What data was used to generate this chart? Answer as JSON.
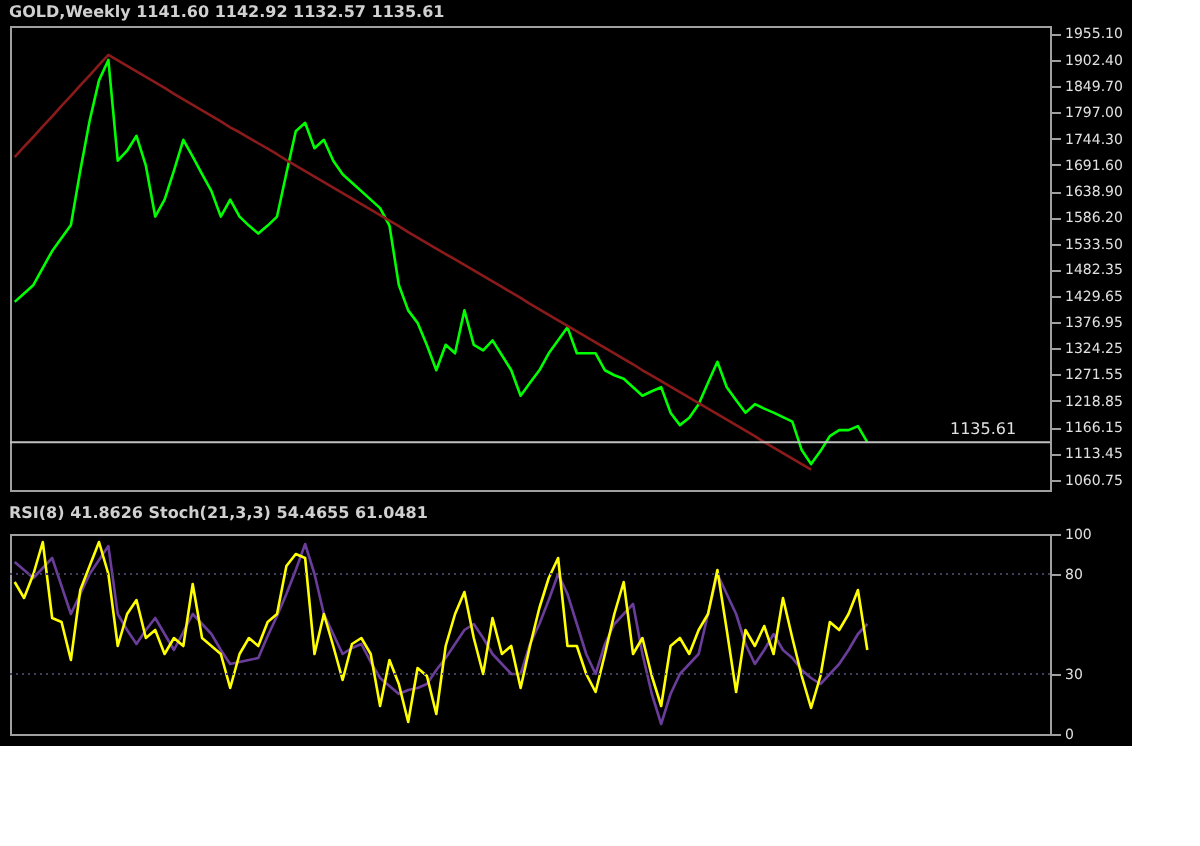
{
  "chart_data": [
    {
      "type": "line",
      "title": "GOLD,Weekly  1141.60 1142.92 1132.57 1135.61",
      "ylim": [
        1040,
        1970
      ],
      "tick_labels": "y",
      "grid": false,
      "legend": false,
      "categories": [
        null,
        null,
        null,
        null,
        null,
        null,
        null,
        null,
        null,
        null,
        null,
        null,
        null,
        null,
        null,
        null,
        null,
        null,
        null,
        null,
        null,
        null,
        null,
        null,
        null,
        null,
        null,
        null,
        null,
        null,
        null,
        null,
        null,
        null,
        null,
        null,
        null,
        null,
        null,
        null,
        null,
        null,
        null,
        null,
        null,
        null,
        null,
        null,
        null,
        null,
        null,
        null,
        null,
        null,
        null,
        null,
        null,
        null,
        null,
        null,
        null,
        null,
        null,
        null,
        null,
        null,
        null,
        null,
        null,
        null,
        null,
        null,
        null,
        null,
        null,
        null,
        null,
        null,
        null,
        null,
        null,
        null,
        null,
        null,
        null,
        null,
        null,
        null,
        null,
        null,
        null,
        null,
        null,
        null,
        null,
        null,
        null,
        null,
        null,
        null,
        null,
        null,
        null,
        null,
        null,
        null,
        null,
        null,
        null,
        null,
        null
      ],
      "yticks": [
        {
          "value": 1060.75,
          "label": "1060.75"
        },
        {
          "value": 1113.45,
          "label": "1113.45"
        },
        {
          "value": 1166.15,
          "label": "1166.15"
        },
        {
          "value": 1218.85,
          "label": "1218.85"
        },
        {
          "value": 1271.55,
          "label": "1271.55"
        },
        {
          "value": 1324.25,
          "label": "1324.25"
        },
        {
          "value": 1376.95,
          "label": "1376.95"
        },
        {
          "value": 1429.65,
          "label": "1429.65"
        },
        {
          "value": 1482.35,
          "label": "1482.35"
        },
        {
          "value": 1533.5,
          "label": "1533.50"
        },
        {
          "value": 1586.2,
          "label": "1586.20"
        },
        {
          "value": 1638.9,
          "label": "1638.90"
        },
        {
          "value": 1691.6,
          "label": "1691.60"
        },
        {
          "value": 1744.3,
          "label": "1744.30"
        },
        {
          "value": 1797.0,
          "label": "1797.00"
        },
        {
          "value": 1849.7,
          "label": "1849.70"
        },
        {
          "value": 1902.4,
          "label": "1902.40"
        },
        {
          "value": 1955.1,
          "label": "1955.10"
        }
      ],
      "ref_lines": [
        {
          "axis": "y",
          "value": 1135.61,
          "label": "1135.61",
          "color": "#c0c0c0",
          "line_style": "solid"
        }
      ],
      "series": [
        {
          "color": "#00ff00",
          "values": [
            1417,
            1434,
            1451,
            1485,
            1519,
            1545,
            1571,
            1680,
            1780,
            1861,
            1902,
            1700,
            1720,
            1750,
            1690,
            1588,
            1622,
            1680,
            1742,
            1708,
            1673,
            1639,
            1588,
            1622,
            1588,
            1570,
            1554,
            1570,
            1588,
            1675,
            1759,
            1776,
            1725,
            1742,
            1700,
            1673,
            1656,
            1639,
            1622,
            1605,
            1570,
            1451,
            1400,
            1375,
            1330,
            1280,
            1331,
            1314,
            1400,
            1331,
            1320,
            1340,
            1310,
            1280,
            1229,
            1255,
            1280,
            1314,
            1340,
            1366,
            1314,
            1314,
            1314,
            1280,
            1270,
            1263,
            1246,
            1229,
            1238,
            1246,
            1195,
            1170,
            1185,
            1212,
            1255,
            1297,
            1246,
            1220,
            1195,
            1212,
            1203,
            1195,
            1186,
            1177,
            1120,
            1092,
            1118,
            1148,
            1160,
            1160,
            1168,
            1136,
            null,
            null,
            null,
            null,
            null,
            null,
            null,
            null,
            null,
            null,
            null,
            null,
            null,
            null,
            null,
            null,
            null,
            null,
            null
          ]
        },
        {
          "color": "#8b1a1a",
          "values": [
            1707,
            1728,
            1748,
            1769,
            1789,
            1810,
            1830,
            1851,
            1871,
            1892,
            1912,
            1901,
            1890,
            1879,
            1868,
            1857,
            1846,
            1834,
            1823,
            1812,
            1801,
            1790,
            1779,
            1767,
            1757,
            1746,
            1735,
            1724,
            1713,
            1701,
            1690,
            1679,
            1668,
            1657,
            1646,
            1635,
            1624,
            1613,
            1602,
            1591,
            1580,
            1569,
            1557,
            1546,
            1535,
            1524,
            1513,
            1502,
            1491,
            1480,
            1469,
            1458,
            1447,
            1436,
            1425,
            1413,
            1402,
            1391,
            1380,
            1369,
            1358,
            1347,
            1336,
            1325,
            1314,
            1303,
            1292,
            1280,
            1269,
            1258,
            1247,
            1236,
            1225,
            1214,
            1203,
            1192,
            1181,
            1170,
            1159,
            1148,
            1136,
            1125,
            1114,
            1103,
            1092,
            1081,
            null,
            null,
            null,
            null,
            null,
            null,
            null,
            null,
            null,
            null,
            null,
            null,
            null,
            null,
            null,
            null,
            null,
            null,
            null,
            null,
            null,
            null,
            null,
            null,
            null
          ]
        }
      ]
    },
    {
      "type": "line",
      "title": "RSI(8) 41.8626  Stoch(21,3,3) 54.4655 61.0481",
      "ylim": [
        0,
        100
      ],
      "yticks": [
        0,
        30,
        80,
        100
      ],
      "tick_labels": "y",
      "grid": false,
      "legend": false,
      "categories": [
        null,
        null,
        null,
        null,
        null,
        null,
        null,
        null,
        null,
        null,
        null,
        null,
        null,
        null,
        null,
        null,
        null,
        null,
        null,
        null,
        null,
        null,
        null,
        null,
        null,
        null,
        null,
        null,
        null,
        null,
        null,
        null,
        null,
        null,
        null,
        null,
        null,
        null,
        null,
        null,
        null,
        null,
        null,
        null,
        null,
        null,
        null,
        null,
        null,
        null,
        null,
        null,
        null,
        null,
        null,
        null,
        null,
        null,
        null,
        null,
        null,
        null,
        null,
        null,
        null,
        null,
        null,
        null,
        null,
        null,
        null,
        null,
        null,
        null,
        null,
        null,
        null,
        null,
        null,
        null,
        null,
        null,
        null,
        null,
        null,
        null,
        null,
        null,
        null,
        null,
        null,
        null,
        null,
        null,
        null,
        null,
        null,
        null,
        null,
        null,
        null,
        null,
        null,
        null,
        null,
        null,
        null,
        null,
        null,
        null,
        null
      ],
      "ref_lines": [
        {
          "axis": "y",
          "value": 80,
          "color": "#404060",
          "line_style": "dotted"
        },
        {
          "axis": "y",
          "value": 30,
          "color": "#404060",
          "line_style": "dotted"
        }
      ],
      "series": [
        {
          "color": "#6a3d9a",
          "values": [
            86,
            82,
            78,
            83,
            88,
            74,
            60,
            70,
            80,
            87,
            94,
            60,
            52,
            45,
            52,
            58,
            50,
            42,
            51,
            60,
            55,
            50,
            42,
            35,
            36,
            37,
            38,
            49,
            59,
            70,
            82,
            95,
            80,
            60,
            50,
            40,
            43,
            45,
            36,
            28,
            24,
            20,
            22,
            23,
            25,
            32,
            38,
            45,
            52,
            55,
            48,
            40,
            35,
            30,
            30,
            45,
            55,
            67,
            80,
            70,
            55,
            40,
            30,
            45,
            55,
            60,
            65,
            40,
            20,
            5,
            20,
            30,
            35,
            40,
            60,
            80,
            70,
            60,
            45,
            35,
            42,
            50,
            42,
            38,
            32,
            28,
            25,
            30,
            35,
            42,
            50,
            55,
            null,
            null,
            null,
            null,
            null,
            null,
            null,
            null,
            null,
            null,
            null,
            null,
            null,
            null,
            null,
            null,
            null,
            null,
            null
          ]
        },
        {
          "color": "#ffff00",
          "values": [
            76,
            68,
            80,
            96,
            58,
            56,
            37,
            72,
            84,
            96,
            80,
            44,
            60,
            67,
            48,
            52,
            40,
            48,
            44,
            75,
            48,
            44,
            40,
            23,
            40,
            48,
            44,
            56,
            60,
            84,
            90,
            88,
            40,
            60,
            44,
            27,
            45,
            48,
            40,
            14,
            37,
            25,
            6,
            33,
            29,
            10,
            44,
            60,
            71,
            48,
            30,
            58,
            40,
            44,
            23,
            44,
            63,
            78,
            88,
            44,
            44,
            30,
            21,
            40,
            60,
            76,
            40,
            48,
            29,
            14,
            44,
            48,
            40,
            52,
            60,
            82,
            52,
            21,
            52,
            44,
            54,
            40,
            68,
            48,
            29,
            13,
            29,
            56,
            52,
            60,
            72,
            42,
            null,
            null,
            null,
            null,
            null,
            null,
            null,
            null,
            null,
            null,
            null,
            null,
            null,
            null,
            null,
            null,
            null,
            null,
            null
          ]
        }
      ]
    }
  ]
}
